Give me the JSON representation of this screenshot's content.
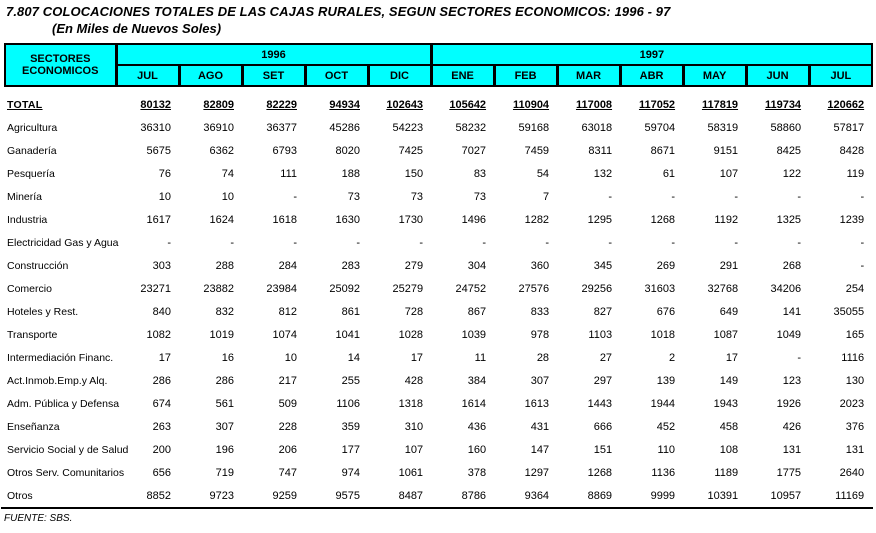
{
  "title": "7.807  COLOCACIONES TOTALES DE LAS CAJAS RURALES, SEGUN SECTORES ECONOMICOS: 1996 - 97",
  "subtitle": "(En Miles de Nuevos Soles)",
  "colors": {
    "header_bg": "#00FFFF",
    "border": "#000000",
    "text": "#000000"
  },
  "header": {
    "sector_label_line1": "SECTORES",
    "sector_label_line2": "ECONOMICOS",
    "year_groups": [
      {
        "label": "1996",
        "months": [
          "JUL",
          "AGO",
          "SET",
          "OCT",
          "DIC"
        ]
      },
      {
        "label": "1997",
        "months": [
          "ENE",
          "FEB",
          "MAR",
          "ABR",
          "MAY",
          "JUN",
          "JUL"
        ]
      }
    ]
  },
  "rows": [
    {
      "label": "TOTAL",
      "bold": true,
      "values": [
        "80132",
        "82809",
        "82229",
        "94934",
        "102643",
        "105642",
        "110904",
        "117008",
        "117052",
        "117819",
        "119734",
        "120662"
      ]
    },
    {
      "label": "Agricultura",
      "values": [
        "36310",
        "36910",
        "36377",
        "45286",
        "54223",
        "58232",
        "59168",
        "63018",
        "59704",
        "58319",
        "58860",
        "57817"
      ]
    },
    {
      "label": "Ganadería",
      "values": [
        "5675",
        "6362",
        "6793",
        "8020",
        "7425",
        "7027",
        "7459",
        "8311",
        "8671",
        "9151",
        "8425",
        "8428"
      ]
    },
    {
      "label": "Pesquería",
      "values": [
        "76",
        "74",
        "111",
        "188",
        "150",
        "83",
        "54",
        "132",
        "61",
        "107",
        "122",
        "119"
      ]
    },
    {
      "label": "Minería",
      "values": [
        "10",
        "10",
        "-",
        "73",
        "73",
        "73",
        "7",
        "-",
        "-",
        "-",
        "-",
        "-"
      ]
    },
    {
      "label": "Industria",
      "values": [
        "1617",
        "1624",
        "1618",
        "1630",
        "1730",
        "1496",
        "1282",
        "1295",
        "1268",
        "1192",
        "1325",
        "1239"
      ]
    },
    {
      "label": "Electricidad Gas y Agua",
      "values": [
        "-",
        "-",
        "-",
        "-",
        "-",
        "-",
        "-",
        "-",
        "-",
        "-",
        "-",
        "-"
      ]
    },
    {
      "label": "Construcción",
      "values": [
        "303",
        "288",
        "284",
        "283",
        "279",
        "304",
        "360",
        "345",
        "269",
        "291",
        "268",
        "-"
      ]
    },
    {
      "label": "Comercio",
      "values": [
        "23271",
        "23882",
        "23984",
        "25092",
        "25279",
        "24752",
        "27576",
        "29256",
        "31603",
        "32768",
        "34206",
        "254"
      ]
    },
    {
      "label": "Hoteles y Rest.",
      "values": [
        "840",
        "832",
        "812",
        "861",
        "728",
        "867",
        "833",
        "827",
        "676",
        "649",
        "141",
        "35055"
      ]
    },
    {
      "label": "Transporte",
      "values": [
        "1082",
        "1019",
        "1074",
        "1041",
        "1028",
        "1039",
        "978",
        "1103",
        "1018",
        "1087",
        "1049",
        "165"
      ]
    },
    {
      "label": "Intermediación Financ.",
      "values": [
        "17",
        "16",
        "10",
        "14",
        "17",
        "11",
        "28",
        "27",
        "2",
        "17",
        "-",
        "1116"
      ]
    },
    {
      "label": "Act.Inmob.Emp.y Alq.",
      "values": [
        "286",
        "286",
        "217",
        "255",
        "428",
        "384",
        "307",
        "297",
        "139",
        "149",
        "123",
        "130"
      ]
    },
    {
      "label": "Adm. Pública y Defensa",
      "values": [
        "674",
        "561",
        "509",
        "1106",
        "1318",
        "1614",
        "1613",
        "1443",
        "1944",
        "1943",
        "1926",
        "2023"
      ]
    },
    {
      "label": "Enseñanza",
      "values": [
        "263",
        "307",
        "228",
        "359",
        "310",
        "436",
        "431",
        "666",
        "452",
        "458",
        "426",
        "376"
      ]
    },
    {
      "label": "Servicio Social y de Salud",
      "values": [
        "200",
        "196",
        "206",
        "177",
        "107",
        "160",
        "147",
        "151",
        "110",
        "108",
        "131",
        "131"
      ]
    },
    {
      "label": "Otros Serv. Comunitarios",
      "values": [
        "656",
        "719",
        "747",
        "974",
        "1061",
        "378",
        "1297",
        "1268",
        "1136",
        "1189",
        "1775",
        "2640"
      ]
    },
    {
      "label": "Otros",
      "values": [
        "8852",
        "9723",
        "9259",
        "9575",
        "8487",
        "8786",
        "9364",
        "8869",
        "9999",
        "10391",
        "10957",
        "11169"
      ]
    }
  ],
  "footer": {
    "source": "FUENTE: SBS."
  }
}
